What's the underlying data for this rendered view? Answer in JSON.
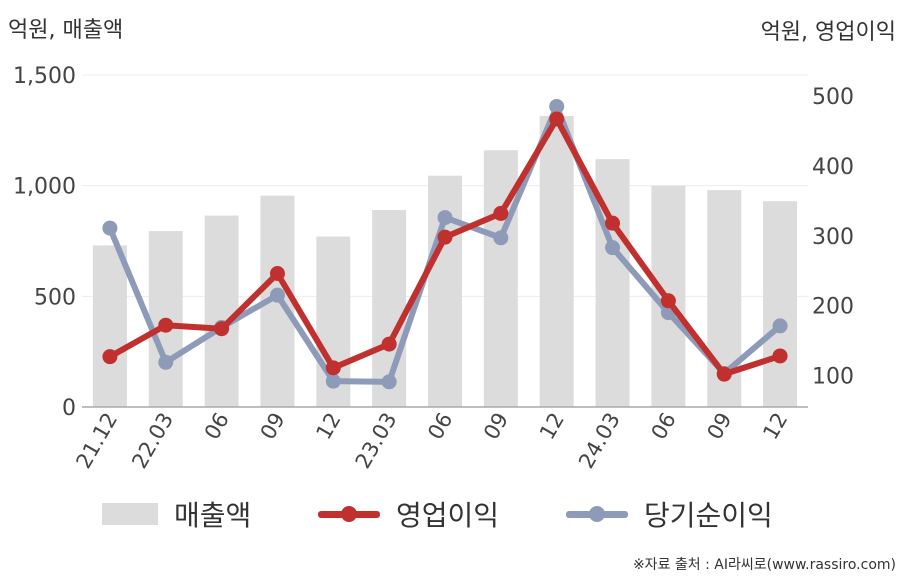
{
  "chart_data": {
    "type": "bar+line",
    "categories": [
      "21.12",
      "22.03",
      "06",
      "09",
      "12",
      "23.03",
      "06",
      "09",
      "12",
      "24.03",
      "06",
      "09",
      "12"
    ],
    "left_axis": {
      "label": "억원, 매출액",
      "ylim": [
        0,
        1500
      ],
      "ticks": [
        0,
        500,
        1000,
        1500
      ],
      "tick_labels": [
        "0",
        "500",
        "1,000",
        "1,500"
      ]
    },
    "right_axis": {
      "label": "억원, 영업이익",
      "ylim": [
        55,
        530
      ],
      "ticks": [
        100,
        200,
        300,
        400,
        500
      ],
      "tick_labels": [
        "100",
        "200",
        "300",
        "400",
        "500"
      ]
    },
    "series": [
      {
        "name": "매출액",
        "type": "bar",
        "axis": "left",
        "color": "#dcdcdc",
        "values": [
          730,
          795,
          865,
          955,
          770,
          890,
          1045,
          1160,
          1315,
          1120,
          1000,
          980,
          930
        ]
      },
      {
        "name": "영업이익",
        "type": "line",
        "axis": "right",
        "color": "#c0302e",
        "values": [
          127,
          172,
          167,
          246,
          111,
          145,
          298,
          332,
          467,
          318,
          207,
          102,
          128
        ]
      },
      {
        "name": "당기순이익",
        "type": "line",
        "axis": "right",
        "color": "#8e9bb8",
        "values": [
          311,
          119,
          169,
          215,
          92,
          91,
          326,
          297,
          485,
          283,
          190,
          103,
          171
        ]
      }
    ],
    "grid": true,
    "legend_position": "bottom"
  },
  "source": "※자료 출처 : AI라씨로(www.rassiro.com)"
}
